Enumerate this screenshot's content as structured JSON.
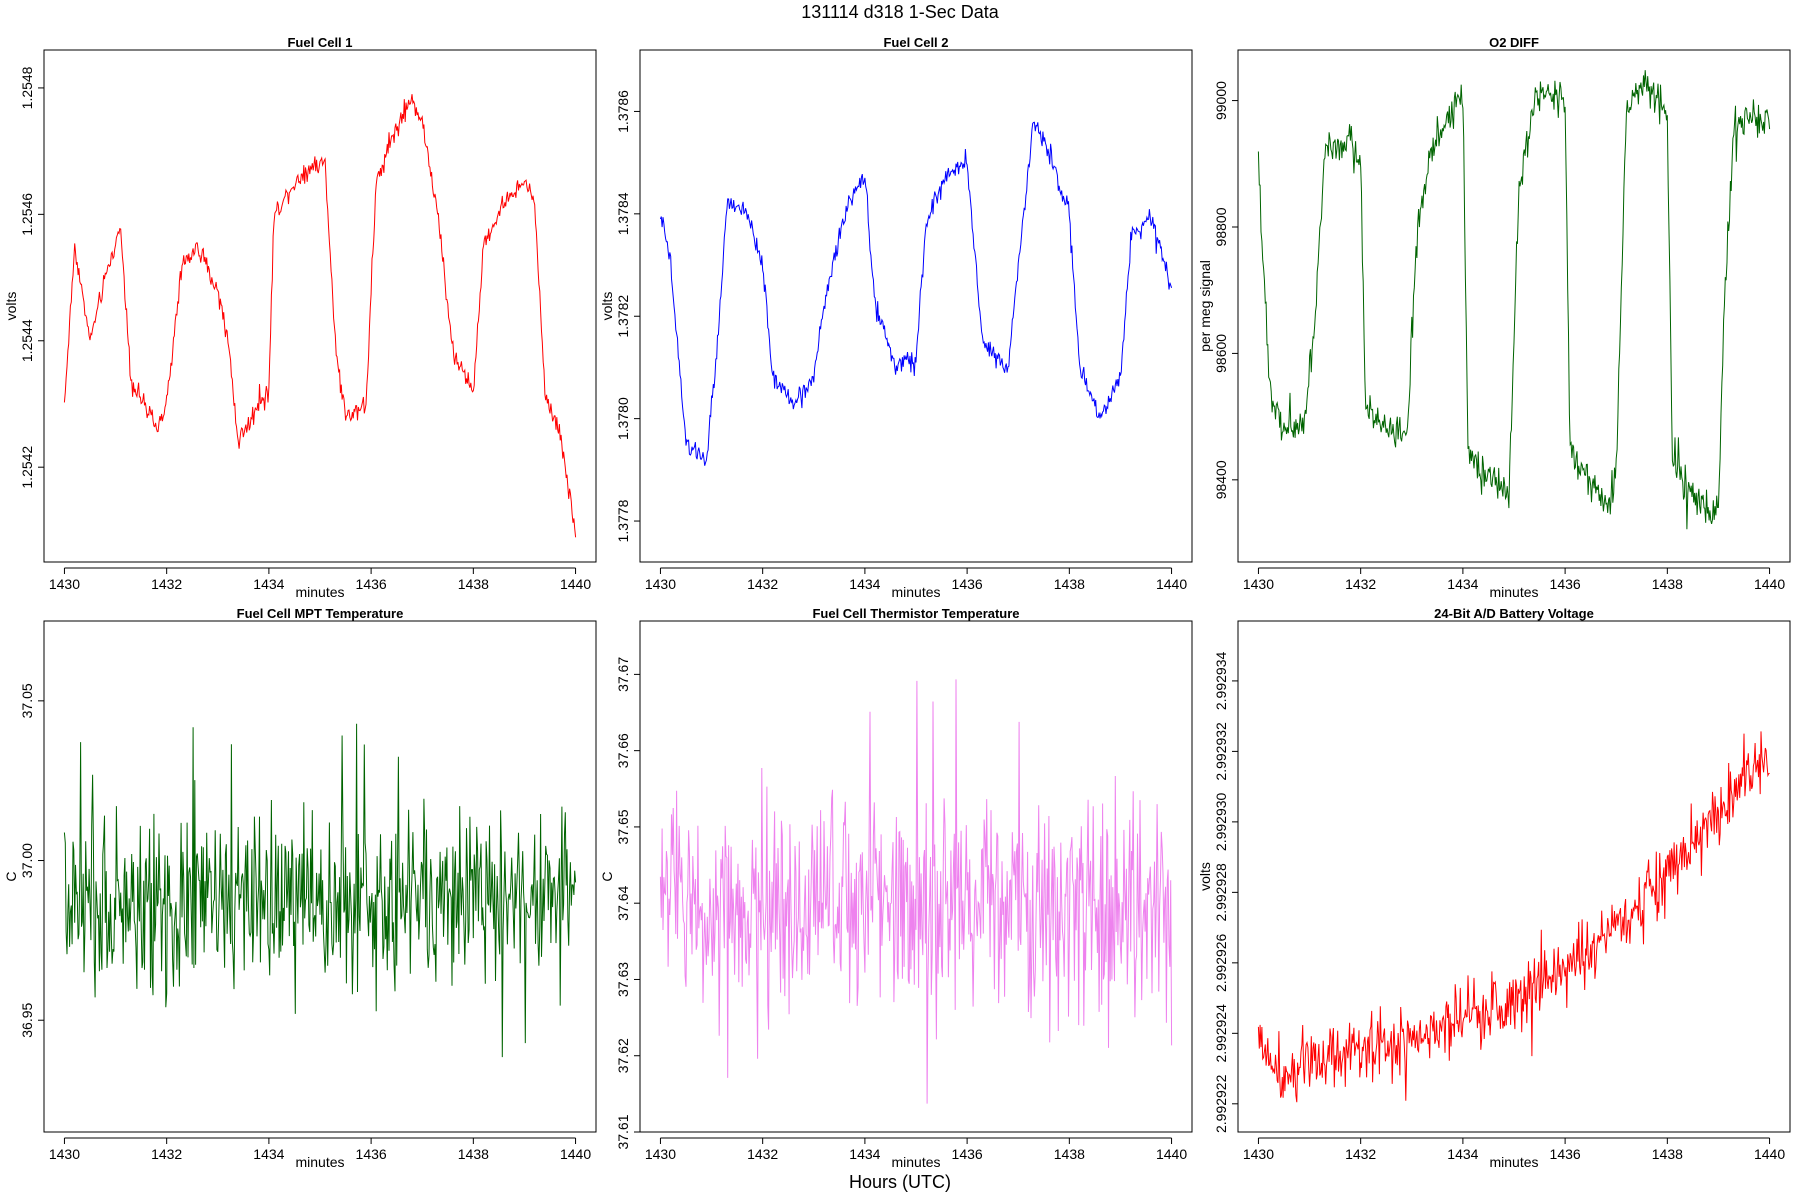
{
  "title": "131114   d318   1-Sec Data",
  "xlabel": "Hours (UTC)",
  "chart_data": [
    {
      "type": "line",
      "title": "Fuel Cell 1",
      "xlabel": "minutes",
      "ylabel": "volts",
      "color": "#ff0000",
      "xlim": [
        1430,
        1440
      ],
      "xticks": [
        "1430",
        "1432",
        "1434",
        "1436",
        "1438",
        "1440"
      ],
      "ylim": [
        1.25405,
        1.25486
      ],
      "yticks": [
        "1.2542",
        "1.2544",
        "1.2546",
        "1.2548"
      ],
      "yformat": 4,
      "noise": 9e-06,
      "anchors": [
        [
          1430,
          1.2543
        ],
        [
          1430.2,
          1.25455
        ],
        [
          1430.5,
          1.2544
        ],
        [
          1430.8,
          1.2545
        ],
        [
          1431.1,
          1.25458
        ],
        [
          1431.3,
          1.25434
        ],
        [
          1431.8,
          1.25426
        ],
        [
          1432.0,
          1.2543
        ],
        [
          1432.3,
          1.25452
        ],
        [
          1432.6,
          1.25455
        ],
        [
          1433.0,
          1.25448
        ],
        [
          1433.2,
          1.2544
        ],
        [
          1433.4,
          1.25424
        ],
        [
          1433.8,
          1.2543
        ],
        [
          1434.0,
          1.25432
        ],
        [
          1434.1,
          1.2546
        ],
        [
          1434.5,
          1.25465
        ],
        [
          1434.9,
          1.25468
        ],
        [
          1435.1,
          1.25468
        ],
        [
          1435.3,
          1.2544
        ],
        [
          1435.5,
          1.25428
        ],
        [
          1435.9,
          1.2543
        ],
        [
          1436.1,
          1.25465
        ],
        [
          1436.4,
          1.25472
        ],
        [
          1436.8,
          1.25478
        ],
        [
          1437.0,
          1.25475
        ],
        [
          1437.3,
          1.2546
        ],
        [
          1437.6,
          1.25438
        ],
        [
          1438.0,
          1.25432
        ],
        [
          1438.2,
          1.25455
        ],
        [
          1438.6,
          1.25462
        ],
        [
          1439.0,
          1.25465
        ],
        [
          1439.2,
          1.25462
        ],
        [
          1439.4,
          1.25432
        ],
        [
          1439.7,
          1.25425
        ],
        [
          1440,
          1.2541
        ]
      ]
    },
    {
      "type": "line",
      "title": "Fuel Cell 2",
      "xlabel": "minutes",
      "ylabel": "volts",
      "color": "#0000ff",
      "xlim": [
        1430,
        1440
      ],
      "xticks": [
        "1430",
        "1432",
        "1434",
        "1436",
        "1438",
        "1440"
      ],
      "ylim": [
        1.37772,
        1.37872
      ],
      "yticks": [
        "1.3778",
        "1.3780",
        "1.3782",
        "1.3784",
        "1.3786"
      ],
      "yformat": 4,
      "noise": 1.1e-05,
      "anchors": [
        [
          1430,
          1.3784
        ],
        [
          1430.2,
          1.3783
        ],
        [
          1430.5,
          1.37795
        ],
        [
          1430.9,
          1.37792
        ],
        [
          1431.1,
          1.37812
        ],
        [
          1431.3,
          1.37842
        ],
        [
          1431.7,
          1.3784
        ],
        [
          1432.0,
          1.3783
        ],
        [
          1432.2,
          1.37808
        ],
        [
          1432.6,
          1.37803
        ],
        [
          1433.0,
          1.37808
        ],
        [
          1433.2,
          1.37822
        ],
        [
          1433.6,
          1.3784
        ],
        [
          1434.0,
          1.37848
        ],
        [
          1434.2,
          1.37822
        ],
        [
          1434.6,
          1.3781
        ],
        [
          1435.0,
          1.37812
        ],
        [
          1435.2,
          1.37838
        ],
        [
          1435.6,
          1.37848
        ],
        [
          1436.0,
          1.3785
        ],
        [
          1436.3,
          1.37815
        ],
        [
          1436.8,
          1.3781
        ],
        [
          1437.0,
          1.3783
        ],
        [
          1437.3,
          1.37858
        ],
        [
          1437.6,
          1.37852
        ],
        [
          1438.0,
          1.3784
        ],
        [
          1438.2,
          1.3781
        ],
        [
          1438.6,
          1.378
        ],
        [
          1439.0,
          1.37808
        ],
        [
          1439.2,
          1.37835
        ],
        [
          1439.6,
          1.3784
        ],
        [
          1440,
          1.37825
        ]
      ]
    },
    {
      "type": "line",
      "title": "O2 DIFF",
      "xlabel": "minutes",
      "ylabel": "per meg signal",
      "color": "#006400",
      "xlim": [
        1430,
        1440
      ],
      "xticks": [
        "1430",
        "1432",
        "1434",
        "1436",
        "1438",
        "1440"
      ],
      "ylim": [
        98270,
        99080
      ],
      "yticks": [
        "98400",
        "98600",
        "98800",
        "99000"
      ],
      "yformat": 0,
      "noise": 18,
      "anchors": [
        [
          1430,
          98900
        ],
        [
          1430.2,
          98560
        ],
        [
          1430.5,
          98480
        ],
        [
          1430.9,
          98490
        ],
        [
          1431.1,
          98650
        ],
        [
          1431.3,
          98920
        ],
        [
          1431.8,
          98930
        ],
        [
          1432.0,
          98900
        ],
        [
          1432.1,
          98520
        ],
        [
          1432.5,
          98480
        ],
        [
          1432.9,
          98470
        ],
        [
          1433.1,
          98780
        ],
        [
          1433.4,
          98930
        ],
        [
          1433.8,
          98980
        ],
        [
          1434.0,
          99010
        ],
        [
          1434.1,
          98450
        ],
        [
          1434.5,
          98400
        ],
        [
          1434.9,
          98380
        ],
        [
          1435.1,
          98860
        ],
        [
          1435.4,
          99000
        ],
        [
          1435.9,
          99020
        ],
        [
          1436.0,
          98990
        ],
        [
          1436.1,
          98450
        ],
        [
          1436.6,
          98380
        ],
        [
          1436.9,
          98360
        ],
        [
          1437.0,
          98420
        ],
        [
          1437.2,
          98990
        ],
        [
          1437.6,
          99020
        ],
        [
          1438.0,
          98990
        ],
        [
          1438.1,
          98430
        ],
        [
          1438.6,
          98360
        ],
        [
          1439.0,
          98350
        ],
        [
          1439.1,
          98650
        ],
        [
          1439.3,
          98960
        ],
        [
          1440,
          98970
        ]
      ]
    },
    {
      "type": "line",
      "title": "Fuel Cell MPT Temperature",
      "xlabel": "minutes",
      "ylabel": "C",
      "color": "#006400",
      "xlim": [
        1430,
        1440
      ],
      "xticks": [
        "1430",
        "1432",
        "1434",
        "1436",
        "1438",
        "1440"
      ],
      "ylim": [
        36.915,
        37.075
      ],
      "yticks": [
        "36.95",
        "37.00",
        "37.05"
      ],
      "yformat": 2,
      "noise": 0.016,
      "anchors": [
        [
          1430,
          36.985
        ],
        [
          1435,
          36.987
        ],
        [
          1440,
          36.99
        ]
      ]
    },
    {
      "type": "line",
      "title": "Fuel Cell Thermistor Temperature",
      "xlabel": "minutes",
      "ylabel": "C",
      "color": "#ee82ee",
      "xlim": [
        1430,
        1440
      ],
      "xticks": [
        "1430",
        "1432",
        "1434",
        "1436",
        "1438",
        "1440"
      ],
      "ylim": [
        37.61,
        37.677
      ],
      "yticks": [
        "37.61",
        "37.62",
        "37.63",
        "37.64",
        "37.65",
        "37.66",
        "37.67"
      ],
      "yformat": 2,
      "noise": 0.0085,
      "anchors": [
        [
          1430,
          37.641
        ],
        [
          1435,
          37.64
        ],
        [
          1440,
          37.639
        ]
      ]
    },
    {
      "type": "line",
      "title": "24-Bit A/D Battery Voltage",
      "xlabel": "minutes",
      "ylabel": "volts",
      "color": "#ff0000",
      "xlim": [
        1430,
        1440
      ],
      "xticks": [
        "1430",
        "1432",
        "1434",
        "1436",
        "1438",
        "1440"
      ],
      "ylim": [
        2.9929212,
        2.9929357
      ],
      "yticks": [
        "2.992922",
        "2.992924",
        "2.992926",
        "2.992928",
        "2.992930",
        "2.992932",
        "2.992934"
      ],
      "yformat": 6,
      "noise": 5.5e-07,
      "anchors": [
        [
          1430,
          2.9929238
        ],
        [
          1430.5,
          2.9929228
        ],
        [
          1431,
          2.9929232
        ],
        [
          1432,
          2.9929236
        ],
        [
          1433,
          2.9929238
        ],
        [
          1434,
          2.9929243
        ],
        [
          1435,
          2.992925
        ],
        [
          1436,
          2.9929258
        ],
        [
          1437,
          2.992927
        ],
        [
          1438,
          2.9929285
        ],
        [
          1439,
          2.9929303
        ],
        [
          1440,
          2.992932
        ]
      ]
    }
  ]
}
